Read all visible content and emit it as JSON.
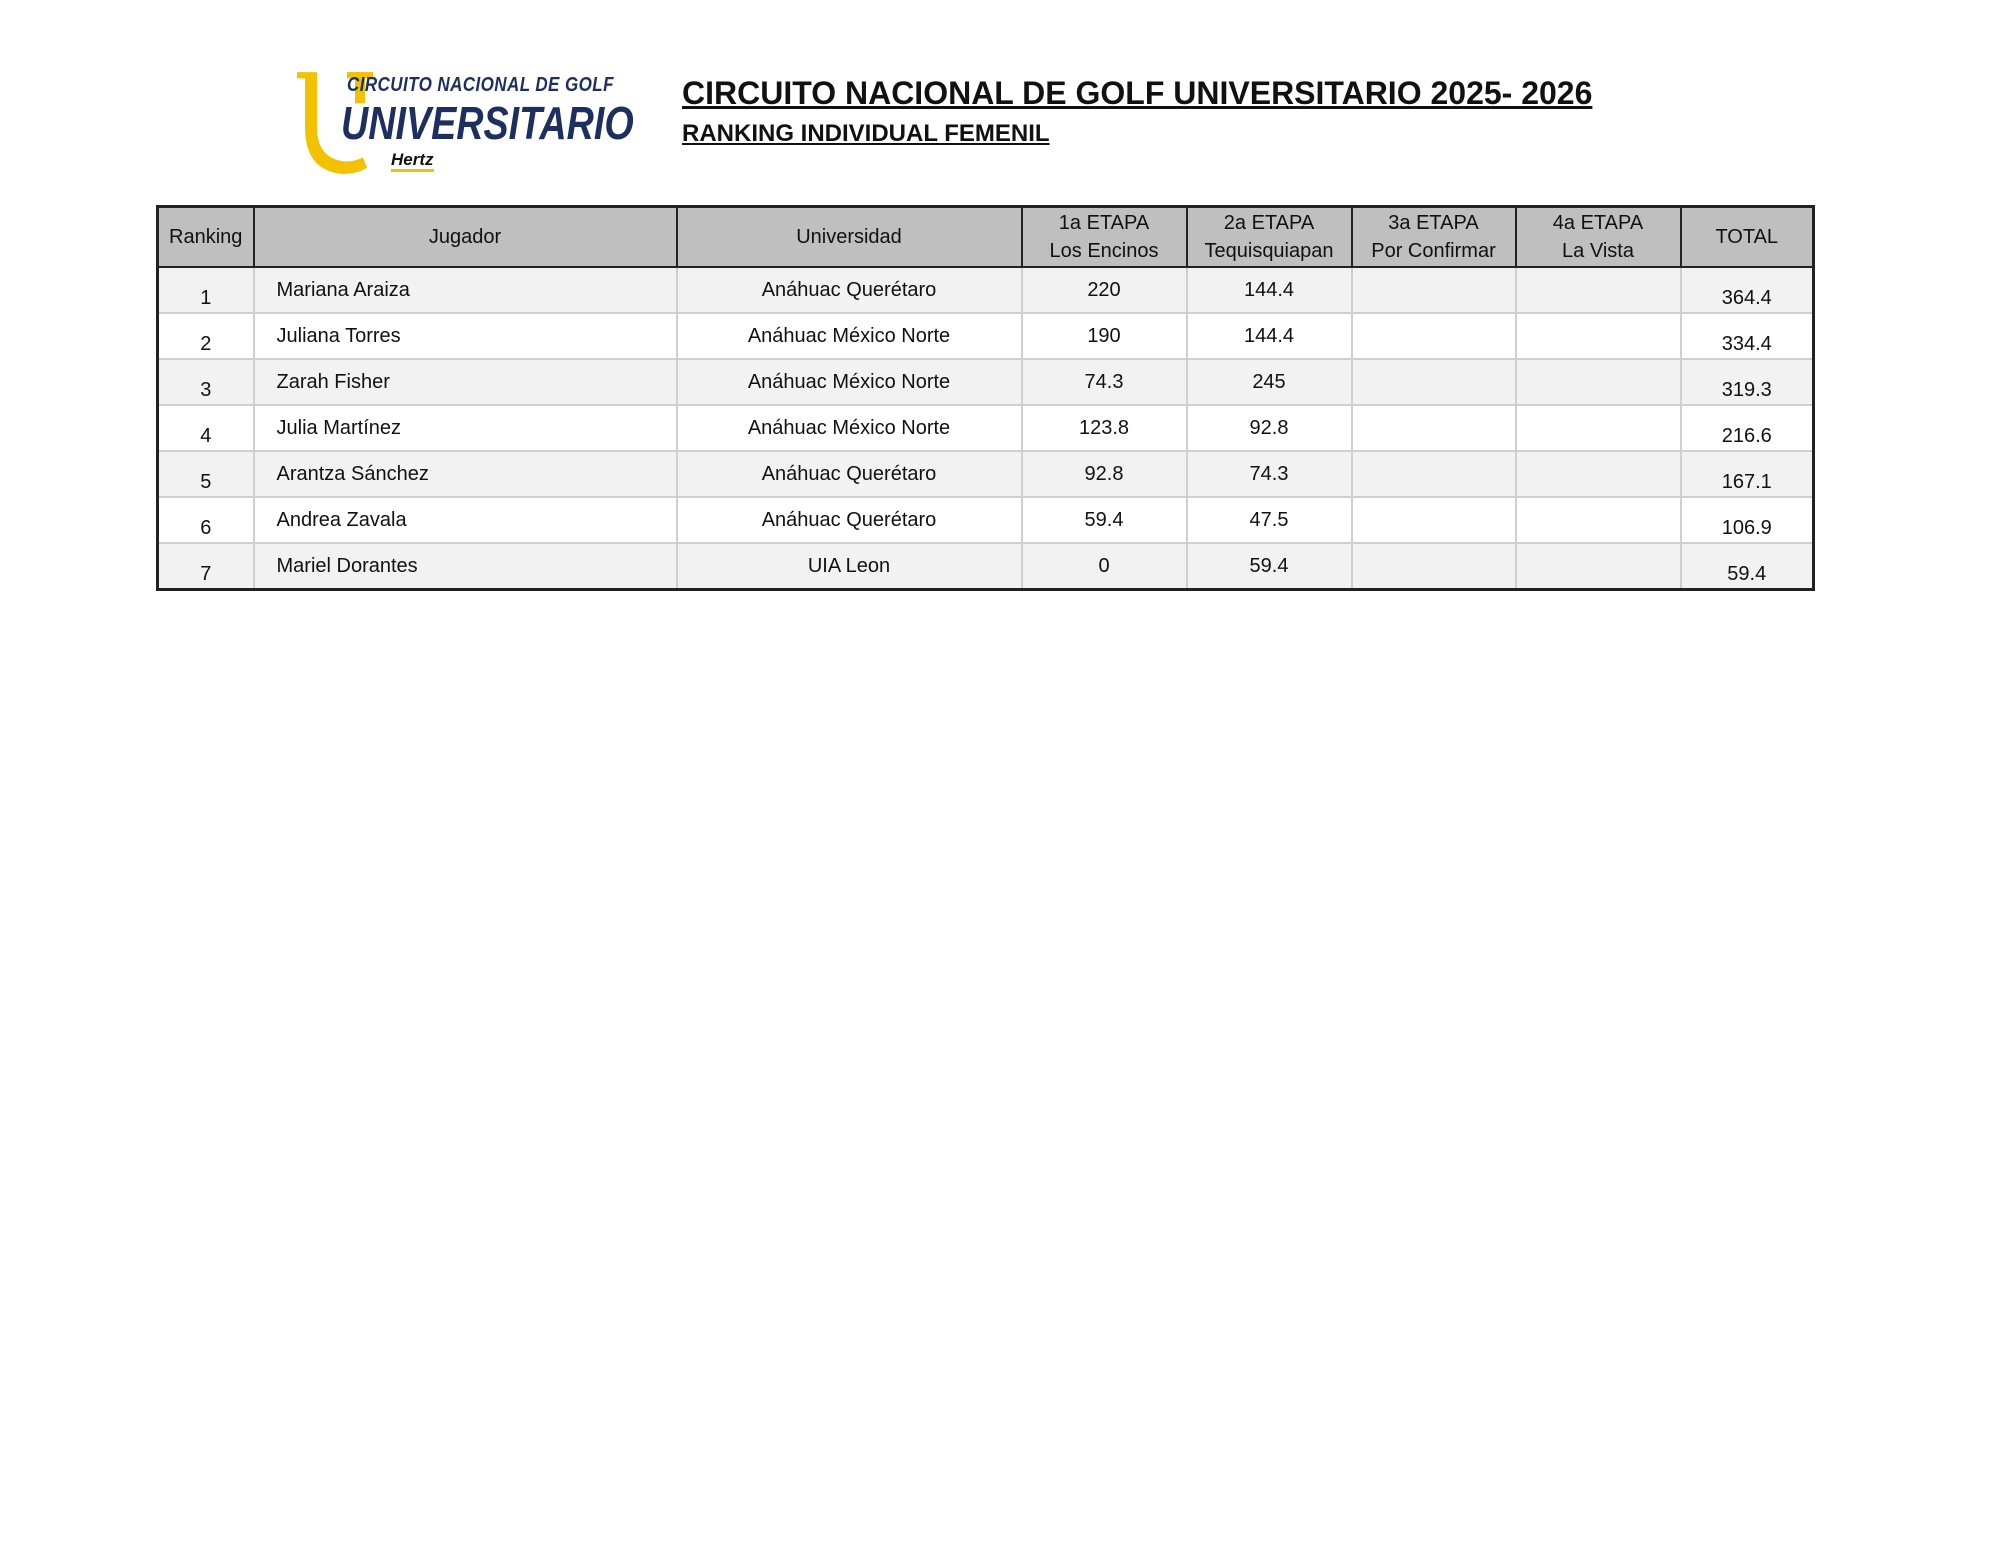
{
  "logo": {
    "line1": "CIRCUITO NACIONAL DE GOLF",
    "line2": "UNIVERSITARIO",
    "line3": "Hertz",
    "colors": {
      "yellow": "#f2c200",
      "blue": "#1d2f5e"
    }
  },
  "header": {
    "title": "CIRCUITO NACIONAL DE GOLF UNIVERSITARIO 2025- 2026",
    "subtitle": "RANKING INDIVIDUAL FEMENIL"
  },
  "table": {
    "columns": [
      {
        "line1": "Ranking",
        "line2": ""
      },
      {
        "line1": "Jugador",
        "line2": ""
      },
      {
        "line1": "Universidad",
        "line2": ""
      },
      {
        "line1": "1a ETAPA",
        "line2": "Los Encinos"
      },
      {
        "line1": "2a ETAPA",
        "line2": "Tequisquiapan"
      },
      {
        "line1": "3a ETAPA",
        "line2": "Por Confirmar"
      },
      {
        "line1": "4a ETAPA",
        "line2": "La Vista"
      },
      {
        "line1": "TOTAL",
        "line2": ""
      }
    ],
    "rows": [
      {
        "rank": "1",
        "player": "Mariana Araiza",
        "university": "Anáhuac Querétaro",
        "e1": "220",
        "e2": "144.4",
        "e3": "",
        "e4": "",
        "total": "364.4"
      },
      {
        "rank": "2",
        "player": "Juliana Torres",
        "university": "Anáhuac México Norte",
        "e1": "190",
        "e2": "144.4",
        "e3": "",
        "e4": "",
        "total": "334.4"
      },
      {
        "rank": "3",
        "player": "Zarah Fisher",
        "university": "Anáhuac México Norte",
        "e1": "74.3",
        "e2": "245",
        "e3": "",
        "e4": "",
        "total": "319.3"
      },
      {
        "rank": "4",
        "player": "Julia Martínez",
        "university": "Anáhuac México Norte",
        "e1": "123.8",
        "e2": "92.8",
        "e3": "",
        "e4": "",
        "total": "216.6"
      },
      {
        "rank": "5",
        "player": "Arantza Sánchez",
        "university": "Anáhuac Querétaro",
        "e1": "92.8",
        "e2": "74.3",
        "e3": "",
        "e4": "",
        "total": "167.1"
      },
      {
        "rank": "6",
        "player": "Andrea Zavala",
        "university": "Anáhuac Querétaro",
        "e1": "59.4",
        "e2": "47.5",
        "e3": "",
        "e4": "",
        "total": "106.9"
      },
      {
        "rank": "7",
        "player": "Mariel Dorantes",
        "university": "UIA Leon",
        "e1": "0",
        "e2": "59.4",
        "e3": "",
        "e4": "",
        "total": "59.4"
      }
    ]
  }
}
